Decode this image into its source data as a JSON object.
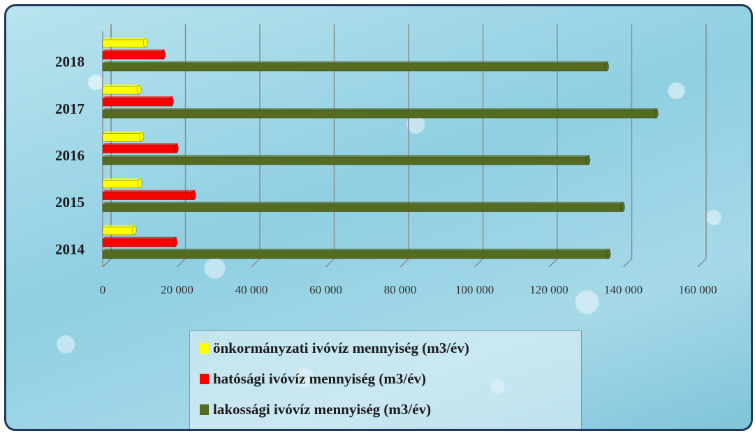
{
  "chart_data": {
    "type": "bar",
    "orientation": "horizontal",
    "categories": [
      "2014",
      "2015",
      "2016",
      "2017",
      "2018"
    ],
    "series": [
      {
        "name": "önkormányzati ivóvíz mennyiség (m3/év)",
        "color": "#ffff00",
        "values": [
          8500,
          10000,
          10500,
          9800,
          11500
        ]
      },
      {
        "name": "hatósági ivóvíz mennyiség (m3/év)",
        "color": "#ff0000",
        "values": [
          19500,
          24500,
          19800,
          18500,
          16300
        ]
      },
      {
        "name": "lakossági ivóvíz mennyiség (m3/év)",
        "color": "#556b1f",
        "values": [
          136000,
          139800,
          130500,
          148800,
          135500
        ]
      }
    ],
    "x_ticks": [
      "0",
      "20 000",
      "40 000",
      "60 000",
      "80 000",
      "100 000",
      "120 000",
      "140 000",
      "160 000"
    ],
    "xlim": [
      0,
      160000
    ],
    "grid": true,
    "legend_position": "bottom",
    "title": "",
    "xlabel": "",
    "ylabel": ""
  }
}
